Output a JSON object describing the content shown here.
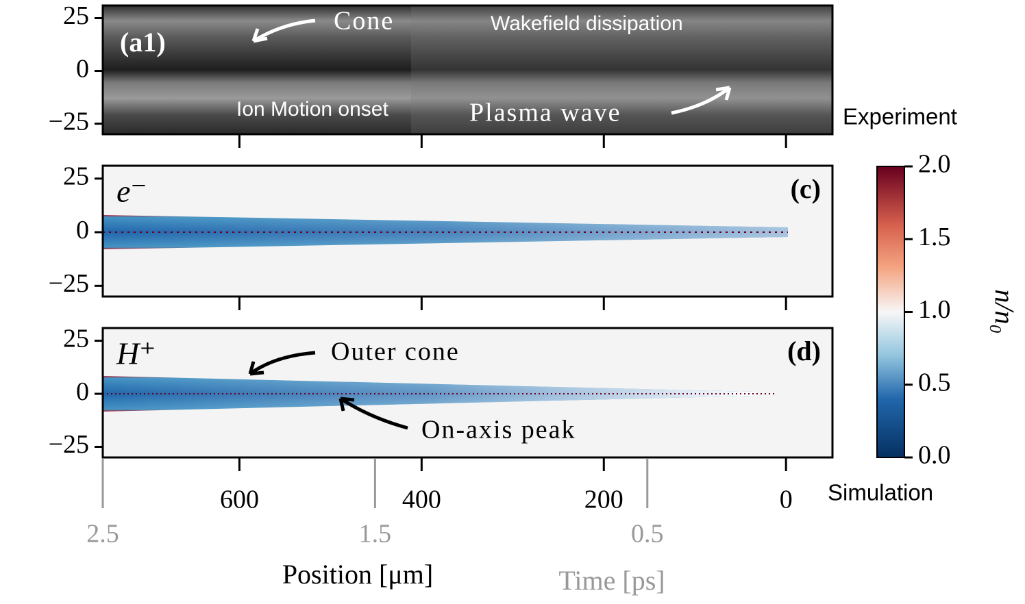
{
  "chart_data": [
    {
      "type": "heatmap",
      "panel_label": "(a1)",
      "xlim": [
        750,
        -51
      ],
      "xticks": [
        600,
        400,
        200,
        0
      ],
      "ylim": [
        -30,
        31
      ],
      "yticks": [
        {
          "value": -25,
          "label": "−25"
        },
        0,
        25
      ],
      "annotations": [
        "Cone",
        "Wakefield dissipation",
        "Ion Motion onset",
        "Plasma wave"
      ],
      "side_label": "Experiment"
    },
    {
      "type": "heatmap",
      "panel_label": "(c)",
      "species": "e⁻",
      "xlim": [
        750,
        -51
      ],
      "xticks": [
        600,
        400,
        200,
        0
      ],
      "ylim": [
        -30,
        31
      ],
      "yticks": [
        {
          "value": -25,
          "label": "−25"
        },
        0,
        25
      ]
    },
    {
      "type": "heatmap",
      "panel_label": "(d)",
      "species": "H⁺",
      "xlim": [
        750,
        -51
      ],
      "xticks": [
        600,
        400,
        200,
        0
      ],
      "ylim": [
        -30,
        31
      ],
      "yticks": [
        {
          "value": -25,
          "label": "−25"
        },
        0,
        25
      ],
      "annotations": [
        "Outer cone",
        "On-axis peak"
      ],
      "side_label": "Simulation",
      "xlabel": "Position [μm]",
      "x2lim": [
        2.5,
        -0.18
      ],
      "x2ticks": [
        2.5,
        1.5,
        0.5
      ],
      "x2label": "Time [ps]",
      "colorbar": {
        "label": "n/n₀",
        "clim": [
          0,
          2
        ],
        "ticks": [
          {
            "value": 0,
            "label": "0.0"
          },
          {
            "value": 0.5,
            "label": "0.5"
          },
          {
            "value": 1,
            "label": "1.0"
          },
          {
            "value": 1.5,
            "label": "1.5"
          },
          {
            "value": 2,
            "label": "2.0"
          }
        ]
      }
    }
  ]
}
